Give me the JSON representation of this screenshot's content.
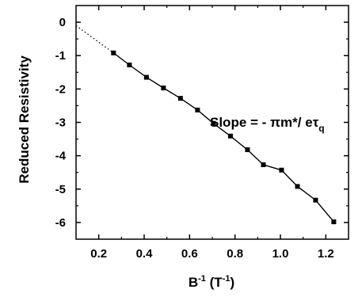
{
  "chart_data": {
    "type": "line",
    "title": "",
    "xlabel": {
      "base": "B",
      "base_sup": "-1",
      "unit_open": " (T",
      "unit_sup": "-1",
      "unit_close": ")"
    },
    "ylabel": "Reduced Resistivity",
    "xlim": [
      0.1,
      1.3
    ],
    "ylim": [
      -6.5,
      0.5
    ],
    "x_ticks": [
      0.2,
      0.4,
      0.6,
      0.8,
      1.0,
      1.2
    ],
    "x_tick_labels": [
      "0.2",
      "0.4",
      "0.6",
      "0.8",
      "1.0",
      "1.2"
    ],
    "y_ticks": [
      0,
      -1,
      -2,
      -3,
      -4,
      -5,
      -6
    ],
    "y_tick_labels": [
      "0",
      "-1",
      "-2",
      "-3",
      "-4",
      "-5",
      "-6"
    ],
    "grid": false,
    "series": [
      {
        "marker": "square",
        "color": "#000000",
        "x": [
          0.265,
          0.335,
          0.41,
          0.485,
          0.56,
          0.635,
          0.705,
          0.78,
          0.855,
          0.925,
          1.005,
          1.075,
          1.155,
          1.235
        ],
        "y": [
          -0.92,
          -1.28,
          -1.65,
          -1.97,
          -2.28,
          -2.63,
          -3.03,
          -3.41,
          -3.82,
          -4.27,
          -4.43,
          -4.92,
          -5.33,
          -5.98
        ]
      }
    ],
    "extrapolation": {
      "style": "dotted",
      "x": [
        0.1,
        0.265
      ],
      "y": [
        -0.1,
        -0.92
      ]
    },
    "annotation": {
      "text_before": "Slope = - πm*/ eτ",
      "subscript": "q"
    }
  }
}
